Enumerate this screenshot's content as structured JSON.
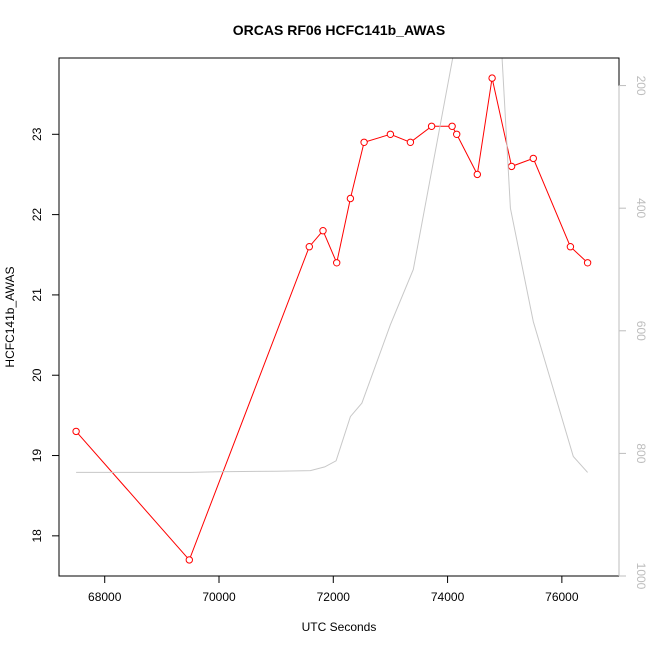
{
  "chart_data": {
    "type": "line",
    "title": "ORCAS RF06 HCFC141b_AWAS",
    "xlabel": "UTC Seconds",
    "ylabel": "HCFC141b_AWAS",
    "xlim": [
      67200,
      77000
    ],
    "ylim": [
      17.5,
      23.95
    ],
    "y2lim": [
      1000,
      155
    ],
    "y2_reversed": true,
    "x_ticks": [
      68000,
      70000,
      72000,
      74000,
      76000
    ],
    "x_tick_labels": [
      "68000",
      "70000",
      "72000",
      "74000",
      "76000"
    ],
    "y_ticks": [
      18,
      19,
      20,
      21,
      22,
      23
    ],
    "y_tick_labels": [
      "18",
      "19",
      "20",
      "21",
      "22",
      "23"
    ],
    "y2_ticks": [
      200,
      400,
      600,
      800,
      1000
    ],
    "y2_tick_labels": [
      "200",
      "400",
      "600",
      "800",
      "1000"
    ],
    "grid": false,
    "series": [
      {
        "color": "#ff0000",
        "marker": "open-circle",
        "axis": "left",
        "x": [
          67500,
          69480,
          71580,
          71820,
          72060,
          72300,
          72540,
          73000,
          73350,
          73720,
          74080,
          74160,
          74520,
          74780,
          75120,
          75500,
          76150,
          76450
        ],
        "y": [
          19.3,
          17.7,
          21.6,
          21.8,
          21.4,
          22.2,
          22.9,
          23.0,
          22.9,
          23.1,
          23.1,
          23.0,
          22.5,
          23.7,
          22.6,
          22.7,
          21.6,
          21.4
        ]
      },
      {
        "color": "#c8c8c8",
        "marker": "none",
        "axis": "right",
        "x": [
          67500,
          69500,
          70000,
          71000,
          71600,
          71850,
          72050,
          72300,
          72500,
          73000,
          73400,
          74100,
          74550,
          74950,
          75100,
          75500,
          76200,
          76450
        ],
        "y": [
          831,
          831,
          830,
          829,
          828,
          822,
          812,
          740,
          718,
          590,
          500,
          150,
          -100,
          150,
          400,
          585,
          805,
          831
        ]
      }
    ]
  }
}
